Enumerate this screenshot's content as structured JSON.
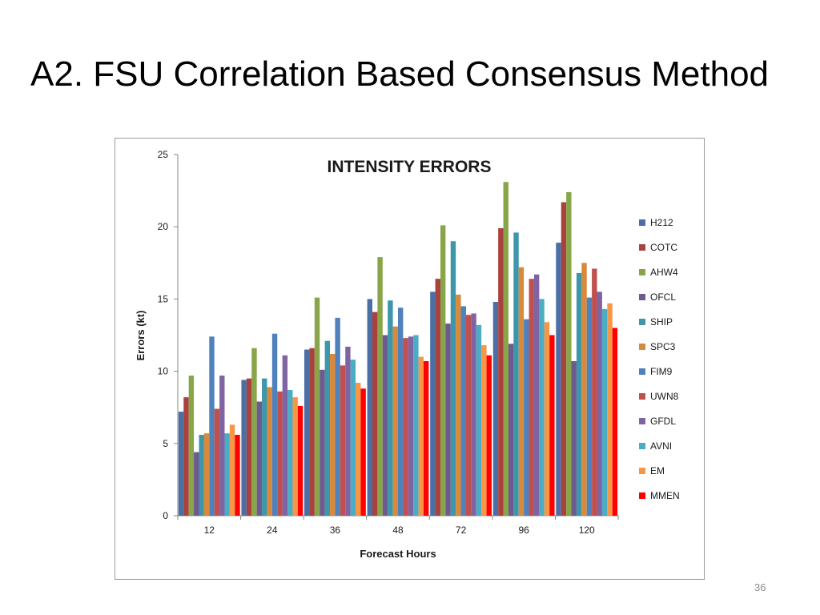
{
  "slide": {
    "title": "A2. FSU Correlation Based Consensus Method",
    "page_number": "36"
  },
  "chart_data": {
    "type": "bar",
    "title": "INTENSITY ERRORS",
    "xlabel": "Forecast Hours",
    "ylabel": "Errors (kt)",
    "ylim": [
      0,
      25
    ],
    "yticks": [
      0,
      5,
      10,
      15,
      20,
      25
    ],
    "grid": false,
    "legend_position": "right",
    "categories": [
      "12",
      "24",
      "36",
      "48",
      "72",
      "96",
      "120"
    ],
    "series": [
      {
        "name": "H212",
        "color": "#4a6fa5",
        "values": [
          7.2,
          9.4,
          11.5,
          15.0,
          15.5,
          14.8,
          18.9
        ]
      },
      {
        "name": "COTC",
        "color": "#a9413e",
        "values": [
          8.2,
          9.5,
          11.6,
          14.1,
          16.4,
          19.9,
          21.7
        ]
      },
      {
        "name": "AHW4",
        "color": "#88a548",
        "values": [
          9.7,
          11.6,
          15.1,
          17.9,
          20.1,
          23.1,
          22.4
        ]
      },
      {
        "name": "OFCL",
        "color": "#6d5a8e",
        "values": [
          4.4,
          7.9,
          10.1,
          12.5,
          13.3,
          11.9,
          10.7
        ]
      },
      {
        "name": "SHIP",
        "color": "#3e96aa",
        "values": [
          5.6,
          9.5,
          12.1,
          14.9,
          19.0,
          19.6,
          16.8
        ]
      },
      {
        "name": "SPC3",
        "color": "#d88a3a",
        "values": [
          5.7,
          8.9,
          11.2,
          13.1,
          15.3,
          17.2,
          17.5
        ]
      },
      {
        "name": "FIM9",
        "color": "#4f81bd",
        "values": [
          12.4,
          12.6,
          13.7,
          14.4,
          14.5,
          13.6,
          15.1
        ]
      },
      {
        "name": "UWN8",
        "color": "#c0504d",
        "values": [
          7.4,
          8.6,
          10.4,
          12.3,
          13.9,
          16.4,
          17.1
        ]
      },
      {
        "name": "GFDL",
        "color": "#8064a2",
        "values": [
          9.7,
          11.1,
          11.7,
          12.4,
          14.0,
          16.7,
          15.5
        ]
      },
      {
        "name": "AVNI",
        "color": "#4bacc6",
        "values": [
          5.7,
          8.7,
          10.8,
          12.5,
          13.2,
          15.0,
          14.3
        ]
      },
      {
        "name": "EM",
        "color": "#f79646",
        "values": [
          6.3,
          8.2,
          9.2,
          11.0,
          11.8,
          13.4,
          14.7
        ]
      },
      {
        "name": "MMEN",
        "color": "#ff0000",
        "values": [
          5.6,
          7.6,
          8.8,
          10.7,
          11.1,
          12.5,
          13.0
        ]
      }
    ]
  }
}
